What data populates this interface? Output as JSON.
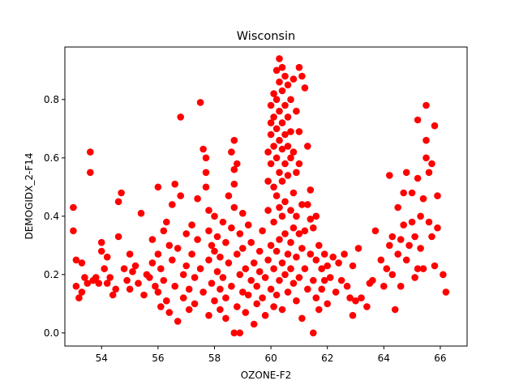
{
  "chart_data": {
    "type": "scatter",
    "title": "Wisconsin",
    "xlabel": "OZONE-F2",
    "ylabel": "DEMOGIDX_2-F14",
    "xlim": [
      52.7,
      66.95
    ],
    "ylim": [
      -0.045,
      0.98
    ],
    "xticks": [
      54,
      56,
      58,
      60,
      62,
      64,
      66
    ],
    "yticks": [
      0.0,
      0.2,
      0.4,
      0.6,
      0.8
    ],
    "ytick_labels": [
      "0.0",
      "0.2",
      "0.4",
      "0.6",
      "0.8"
    ],
    "grid": false,
    "marker_color": "#ff0000",
    "points": [
      [
        53.0,
        0.43
      ],
      [
        53.0,
        0.35
      ],
      [
        53.1,
        0.25
      ],
      [
        53.1,
        0.16
      ],
      [
        53.2,
        0.12
      ],
      [
        53.3,
        0.14
      ],
      [
        53.3,
        0.24
      ],
      [
        53.4,
        0.19
      ],
      [
        53.5,
        0.17
      ],
      [
        53.6,
        0.62
      ],
      [
        53.6,
        0.55
      ],
      [
        53.7,
        0.18
      ],
      [
        53.8,
        0.19
      ],
      [
        53.9,
        0.17
      ],
      [
        54.0,
        0.31
      ],
      [
        54.0,
        0.28
      ],
      [
        54.1,
        0.22
      ],
      [
        54.2,
        0.26
      ],
      [
        54.2,
        0.17
      ],
      [
        54.3,
        0.19
      ],
      [
        54.4,
        0.13
      ],
      [
        54.5,
        0.15
      ],
      [
        54.6,
        0.33
      ],
      [
        54.6,
        0.45
      ],
      [
        54.7,
        0.48
      ],
      [
        54.8,
        0.22
      ],
      [
        54.9,
        0.18
      ],
      [
        55.0,
        0.27
      ],
      [
        55.0,
        0.15
      ],
      [
        55.1,
        0.21
      ],
      [
        55.2,
        0.23
      ],
      [
        55.3,
        0.17
      ],
      [
        55.4,
        0.41
      ],
      [
        55.5,
        0.13
      ],
      [
        55.6,
        0.2
      ],
      [
        55.7,
        0.19
      ],
      [
        55.8,
        0.32
      ],
      [
        55.8,
        0.24
      ],
      [
        55.9,
        0.16
      ],
      [
        56.0,
        0.5
      ],
      [
        56.0,
        0.27
      ],
      [
        56.0,
        0.14
      ],
      [
        56.1,
        0.09
      ],
      [
        56.1,
        0.22
      ],
      [
        56.2,
        0.35
      ],
      [
        56.2,
        0.18
      ],
      [
        56.3,
        0.38
      ],
      [
        56.3,
        0.11
      ],
      [
        56.4,
        0.3
      ],
      [
        56.4,
        0.07
      ],
      [
        56.5,
        0.44
      ],
      [
        56.5,
        0.25
      ],
      [
        56.6,
        0.51
      ],
      [
        56.6,
        0.16
      ],
      [
        56.7,
        0.04
      ],
      [
        56.7,
        0.29
      ],
      [
        56.8,
        0.74
      ],
      [
        56.8,
        0.47
      ],
      [
        56.9,
        0.2
      ],
      [
        56.9,
        0.12
      ],
      [
        57.0,
        0.34
      ],
      [
        57.0,
        0.23
      ],
      [
        57.1,
        0.15
      ],
      [
        57.1,
        0.08
      ],
      [
        57.2,
        0.37
      ],
      [
        57.2,
        0.27
      ],
      [
        57.3,
        0.19
      ],
      [
        57.3,
        0.1
      ],
      [
        57.4,
        0.32
      ],
      [
        57.4,
        0.46
      ],
      [
        57.5,
        0.79
      ],
      [
        57.5,
        0.22
      ],
      [
        57.6,
        0.63
      ],
      [
        57.6,
        0.14
      ],
      [
        57.7,
        0.5
      ],
      [
        57.7,
        0.6
      ],
      [
        57.7,
        0.55
      ],
      [
        57.8,
        0.42
      ],
      [
        57.8,
        0.35
      ],
      [
        57.8,
        0.25
      ],
      [
        57.8,
        0.06
      ],
      [
        57.9,
        0.3
      ],
      [
        57.9,
        0.17
      ],
      [
        58.0,
        0.28
      ],
      [
        58.0,
        0.11
      ],
      [
        58.0,
        0.4
      ],
      [
        58.1,
        0.21
      ],
      [
        58.1,
        0.33
      ],
      [
        58.2,
        0.15
      ],
      [
        58.2,
        0.08
      ],
      [
        58.2,
        0.26
      ],
      [
        58.3,
        0.38
      ],
      [
        58.3,
        0.19
      ],
      [
        58.4,
        0.12
      ],
      [
        58.4,
        0.31
      ],
      [
        58.4,
        0.05
      ],
      [
        58.5,
        0.24
      ],
      [
        58.5,
        0.47
      ],
      [
        58.6,
        0.62
      ],
      [
        58.6,
        0.36
      ],
      [
        58.6,
        0.16
      ],
      [
        58.7,
        0.66
      ],
      [
        58.7,
        0.56
      ],
      [
        58.7,
        0.51
      ],
      [
        58.7,
        0.43
      ],
      [
        58.7,
        0.0
      ],
      [
        58.8,
        0.58
      ],
      [
        58.8,
        0.27
      ],
      [
        58.8,
        0.09
      ],
      [
        58.9,
        0.34
      ],
      [
        58.9,
        0.0
      ],
      [
        58.9,
        0.2
      ],
      [
        59.0,
        0.14
      ],
      [
        59.0,
        0.29
      ],
      [
        59.0,
        0.41
      ],
      [
        59.1,
        0.07
      ],
      [
        59.1,
        0.22
      ],
      [
        59.2,
        0.37
      ],
      [
        59.2,
        0.13
      ],
      [
        59.3,
        0.31
      ],
      [
        59.3,
        0.18
      ],
      [
        59.4,
        0.03
      ],
      [
        59.4,
        0.24
      ],
      [
        59.5,
        0.1
      ],
      [
        59.5,
        0.16
      ],
      [
        59.6,
        0.28
      ],
      [
        59.6,
        0.21
      ],
      [
        59.7,
        0.12
      ],
      [
        59.7,
        0.35
      ],
      [
        59.8,
        0.06
      ],
      [
        59.8,
        0.19
      ],
      [
        59.9,
        0.25
      ],
      [
        59.9,
        0.42
      ],
      [
        59.9,
        0.52
      ],
      [
        59.9,
        0.62
      ],
      [
        60.0,
        0.72
      ],
      [
        60.0,
        0.78
      ],
      [
        60.0,
        0.68
      ],
      [
        60.0,
        0.58
      ],
      [
        60.0,
        0.15
      ],
      [
        60.0,
        0.3
      ],
      [
        60.1,
        0.82
      ],
      [
        60.1,
        0.74
      ],
      [
        60.1,
        0.64
      ],
      [
        60.1,
        0.5
      ],
      [
        60.1,
        0.38
      ],
      [
        60.1,
        0.22
      ],
      [
        60.1,
        0.09
      ],
      [
        60.2,
        0.9
      ],
      [
        60.2,
        0.8
      ],
      [
        60.2,
        0.7
      ],
      [
        60.2,
        0.6
      ],
      [
        60.2,
        0.47
      ],
      [
        60.2,
        0.28
      ],
      [
        60.2,
        0.13
      ],
      [
        60.3,
        0.94
      ],
      [
        60.3,
        0.86
      ],
      [
        60.3,
        0.76
      ],
      [
        60.3,
        0.66
      ],
      [
        60.3,
        0.55
      ],
      [
        60.3,
        0.43
      ],
      [
        60.3,
        0.32
      ],
      [
        60.3,
        0.18
      ],
      [
        60.4,
        0.91
      ],
      [
        60.4,
        0.83
      ],
      [
        60.4,
        0.72
      ],
      [
        60.4,
        0.63
      ],
      [
        60.4,
        0.52
      ],
      [
        60.4,
        0.4
      ],
      [
        60.4,
        0.24
      ],
      [
        60.4,
        0.08
      ],
      [
        60.5,
        0.88
      ],
      [
        60.5,
        0.78
      ],
      [
        60.5,
        0.68
      ],
      [
        60.5,
        0.58
      ],
      [
        60.5,
        0.45
      ],
      [
        60.5,
        0.34
      ],
      [
        60.5,
        0.2
      ],
      [
        60.6,
        0.85
      ],
      [
        60.6,
        0.74
      ],
      [
        60.6,
        0.64
      ],
      [
        60.6,
        0.54
      ],
      [
        60.6,
        0.27
      ],
      [
        60.6,
        0.14
      ],
      [
        60.7,
        0.8
      ],
      [
        60.7,
        0.69
      ],
      [
        60.7,
        0.6
      ],
      [
        60.7,
        0.42
      ],
      [
        60.7,
        0.31
      ],
      [
        60.7,
        0.22
      ],
      [
        60.8,
        0.87
      ],
      [
        60.8,
        0.62
      ],
      [
        60.8,
        0.48
      ],
      [
        60.8,
        0.36
      ],
      [
        60.8,
        0.17
      ],
      [
        60.9,
        0.76
      ],
      [
        60.9,
        0.55
      ],
      [
        60.9,
        0.4
      ],
      [
        60.9,
        0.26
      ],
      [
        60.9,
        0.11
      ],
      [
        61.0,
        0.91
      ],
      [
        61.0,
        0.69
      ],
      [
        61.0,
        0.58
      ],
      [
        61.0,
        0.34
      ],
      [
        61.0,
        0.19
      ],
      [
        61.1,
        0.88
      ],
      [
        61.1,
        0.44
      ],
      [
        61.1,
        0.29
      ],
      [
        61.1,
        0.05
      ],
      [
        61.2,
        0.84
      ],
      [
        61.2,
        0.35
      ],
      [
        61.2,
        0.22
      ],
      [
        61.3,
        0.64
      ],
      [
        61.3,
        0.44
      ],
      [
        61.3,
        0.15
      ],
      [
        61.4,
        0.49
      ],
      [
        61.4,
        0.39
      ],
      [
        61.4,
        0.27
      ],
      [
        61.5,
        0.36
      ],
      [
        61.5,
        0.0
      ],
      [
        61.5,
        0.18
      ],
      [
        61.6,
        0.4
      ],
      [
        61.6,
        0.25
      ],
      [
        61.6,
        0.12
      ],
      [
        61.7,
        0.3
      ],
      [
        61.7,
        0.08
      ],
      [
        61.8,
        0.22
      ],
      [
        61.8,
        0.15
      ],
      [
        61.9,
        0.27
      ],
      [
        61.9,
        0.18
      ],
      [
        62.0,
        0.1
      ],
      [
        62.0,
        0.23
      ],
      [
        62.1,
        0.19
      ],
      [
        62.2,
        0.26
      ],
      [
        62.3,
        0.14
      ],
      [
        62.4,
        0.24
      ],
      [
        62.5,
        0.18
      ],
      [
        62.6,
        0.27
      ],
      [
        62.7,
        0.16
      ],
      [
        62.8,
        0.12
      ],
      [
        62.9,
        0.06
      ],
      [
        62.9,
        0.23
      ],
      [
        63.0,
        0.11
      ],
      [
        63.1,
        0.29
      ],
      [
        63.2,
        0.12
      ],
      [
        63.4,
        0.09
      ],
      [
        63.5,
        0.17
      ],
      [
        63.6,
        0.18
      ],
      [
        63.7,
        0.35
      ],
      [
        63.9,
        0.25
      ],
      [
        64.0,
        0.16
      ],
      [
        64.1,
        0.22
      ],
      [
        64.2,
        0.54
      ],
      [
        64.2,
        0.3
      ],
      [
        64.3,
        0.2
      ],
      [
        64.3,
        0.33
      ],
      [
        64.4,
        0.08
      ],
      [
        64.5,
        0.43
      ],
      [
        64.5,
        0.27
      ],
      [
        64.6,
        0.32
      ],
      [
        64.6,
        0.16
      ],
      [
        64.7,
        0.48
      ],
      [
        64.7,
        0.37
      ],
      [
        64.8,
        0.55
      ],
      [
        64.8,
        0.25
      ],
      [
        64.9,
        0.3
      ],
      [
        65.0,
        0.48
      ],
      [
        65.0,
        0.38
      ],
      [
        65.1,
        0.33
      ],
      [
        65.1,
        0.19
      ],
      [
        65.2,
        0.73
      ],
      [
        65.2,
        0.53
      ],
      [
        65.2,
        0.22
      ],
      [
        65.3,
        0.4
      ],
      [
        65.3,
        0.29
      ],
      [
        65.4,
        0.46
      ],
      [
        65.4,
        0.22
      ],
      [
        65.5,
        0.78
      ],
      [
        65.5,
        0.66
      ],
      [
        65.5,
        0.6
      ],
      [
        65.6,
        0.55
      ],
      [
        65.6,
        0.38
      ],
      [
        65.7,
        0.58
      ],
      [
        65.7,
        0.33
      ],
      [
        65.8,
        0.71
      ],
      [
        65.8,
        0.23
      ],
      [
        65.9,
        0.47
      ],
      [
        65.9,
        0.36
      ],
      [
        66.1,
        0.2
      ],
      [
        66.2,
        0.14
      ]
    ]
  }
}
